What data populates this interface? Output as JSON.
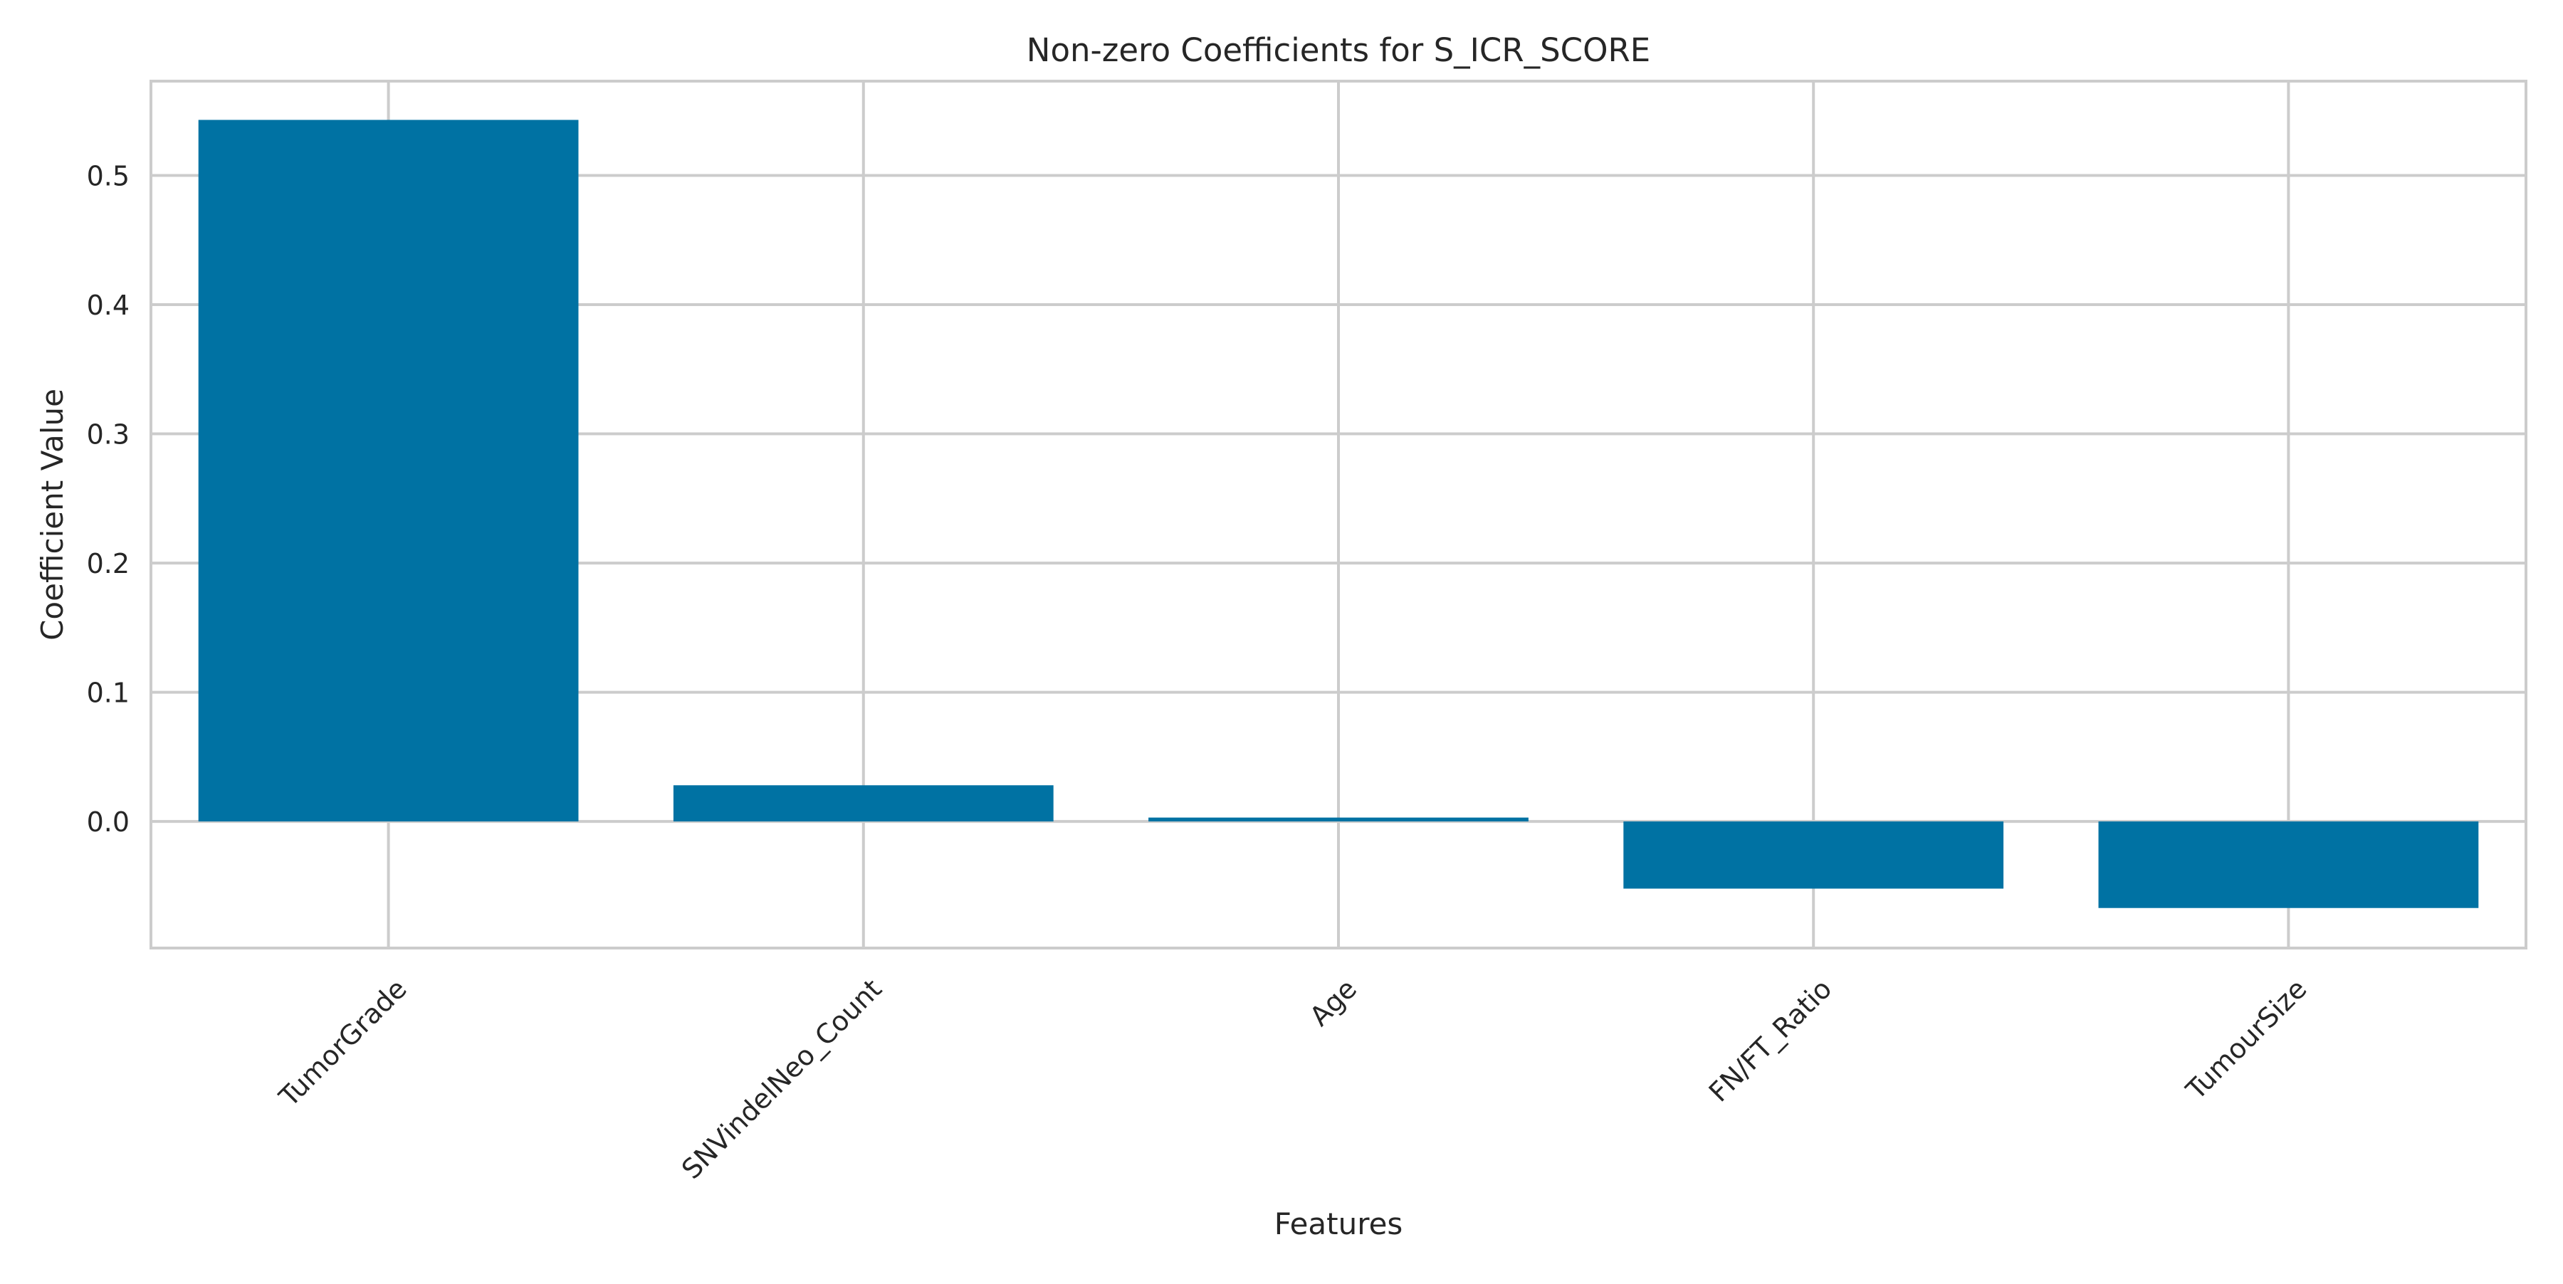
{
  "chart_data": {
    "type": "bar",
    "title": "Non-zero Coefficients for S_ICR_SCORE",
    "xlabel": "Features",
    "ylabel": "Coefficient Value",
    "categories": [
      "TumorGrade",
      "SNVindelNeo_Count",
      "Age",
      "FN/FT_Ratio",
      "TumourSize"
    ],
    "values": [
      0.543,
      0.028,
      0.003,
      -0.052,
      -0.067
    ],
    "yticks": [
      0.0,
      0.1,
      0.2,
      0.3,
      0.4,
      0.5
    ],
    "ytick_labels": [
      "0.0",
      "0.1",
      "0.2",
      "0.3",
      "0.4",
      "0.5"
    ],
    "ylim": [
      -0.098,
      0.573
    ],
    "grid": true,
    "bar_color": "#0072a3",
    "grid_color": "#cccccc",
    "frame_color": "#cccccc"
  }
}
